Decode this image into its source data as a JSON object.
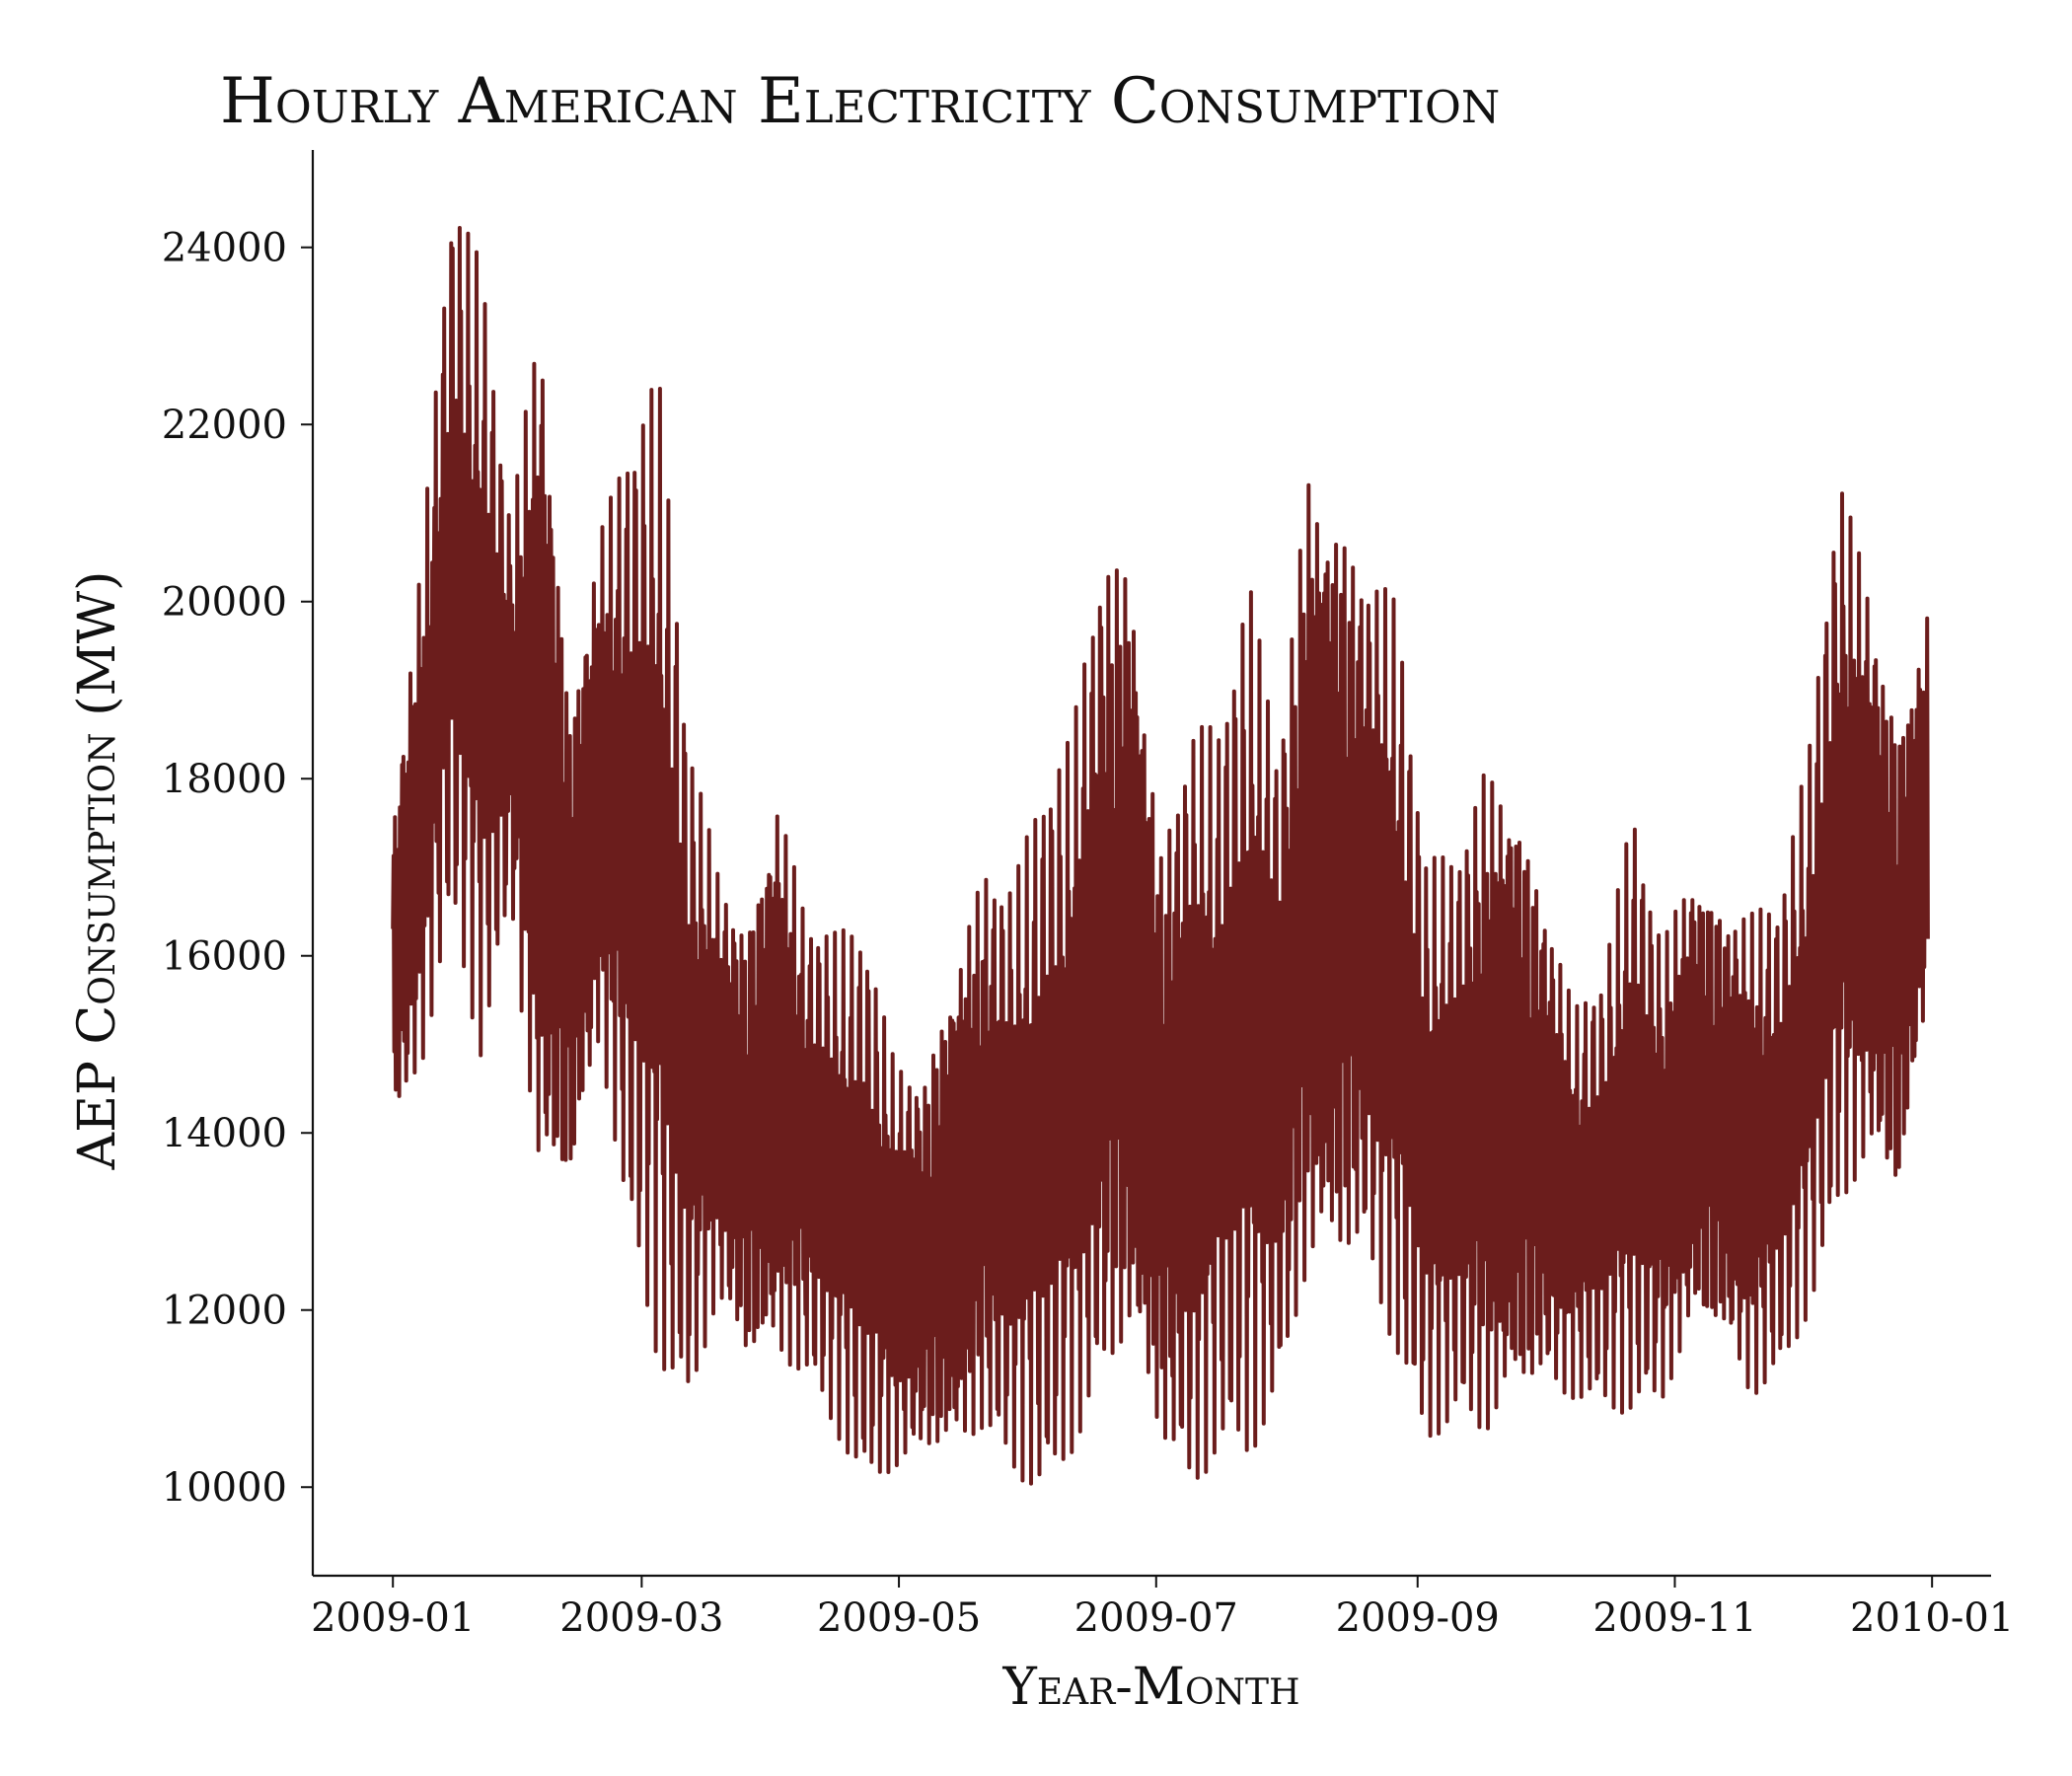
{
  "chart_data": {
    "type": "line",
    "title": "Hourly American Electricity Consumption",
    "xlabel": "Year-Month",
    "ylabel": "AEP Consumption (MW)",
    "xlim": [
      "2008-12-13",
      "2010-01-15"
    ],
    "ylim": [
      9000,
      25100
    ],
    "x_ticks": [
      "2009-01",
      "2009-03",
      "2009-05",
      "2009-07",
      "2009-09",
      "2009-11",
      "2010-01"
    ],
    "y_ticks": [
      10000,
      12000,
      14000,
      16000,
      18000,
      20000,
      22000,
      24000
    ],
    "grid": false,
    "series": [
      {
        "color": "#6b1d1c",
        "x": [
          "2009-01-01",
          "2009-01-08",
          "2009-01-15",
          "2009-01-22",
          "2009-01-29",
          "2009-02-05",
          "2009-02-12",
          "2009-02-19",
          "2009-02-26",
          "2009-03-05",
          "2009-03-12",
          "2009-03-19",
          "2009-03-26",
          "2009-04-02",
          "2009-04-09",
          "2009-04-16",
          "2009-04-23",
          "2009-04-30",
          "2009-05-07",
          "2009-05-14",
          "2009-05-21",
          "2009-05-28",
          "2009-06-04",
          "2009-06-11",
          "2009-06-18",
          "2009-06-25",
          "2009-07-02",
          "2009-07-09",
          "2009-07-16",
          "2009-07-23",
          "2009-07-30",
          "2009-08-06",
          "2009-08-13",
          "2009-08-20",
          "2009-08-27",
          "2009-09-03",
          "2009-09-10",
          "2009-09-17",
          "2009-09-24",
          "2009-10-01",
          "2009-10-08",
          "2009-10-15",
          "2009-10-22",
          "2009-10-29",
          "2009-11-05",
          "2009-11-12",
          "2009-11-19",
          "2009-11-26",
          "2009-12-03",
          "2009-12-10",
          "2009-12-17",
          "2009-12-24",
          "2009-12-31"
        ],
        "min": [
          13700,
          14600,
          16400,
          14800,
          16500,
          12700,
          12900,
          14700,
          12700,
          11400,
          10800,
          11900,
          11000,
          11000,
          11100,
          10600,
          10000,
          10100,
          10100,
          9900,
          10300,
          10100,
          9900,
          10300,
          10700,
          10900,
          10100,
          9700,
          10400,
          10300,
          10800,
          11800,
          11900,
          12200,
          11400,
          10500,
          10700,
          10200,
          10400,
          10800,
          10900,
          10900,
          10800,
          10800,
          11400,
          11300,
          10800,
          11200,
          12000,
          13000,
          13400,
          12800,
          15200
        ],
        "max": [
          17800,
          20800,
          24700,
          23800,
          21000,
          23900,
          19200,
          21100,
          22000,
          22600,
          18600,
          17200,
          16700,
          18300,
          16600,
          16300,
          16300,
          14900,
          14900,
          16300,
          17300,
          16900,
          17900,
          18600,
          21000,
          21200,
          17600,
          18800,
          18600,
          20300,
          18500,
          22100,
          21600,
          20700,
          20100,
          17100,
          17200,
          18500,
          18400,
          17000,
          15500,
          15800,
          17700,
          16300,
          17400,
          17000,
          16700,
          16700,
          18400,
          21600,
          20500,
          19000,
          20200
        ]
      }
    ]
  }
}
